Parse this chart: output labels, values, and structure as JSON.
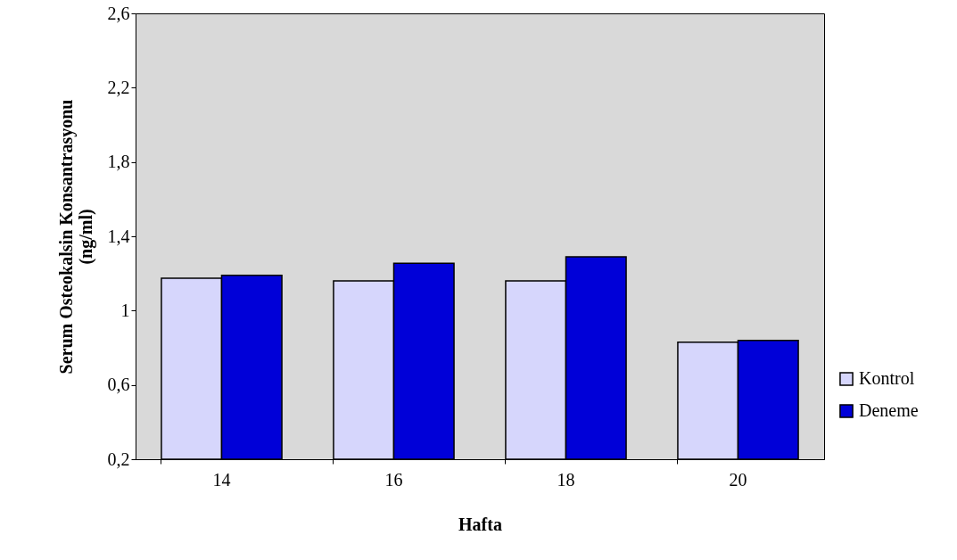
{
  "chart_data": {
    "type": "bar",
    "xlabel": "Hafta",
    "ylabel": "Serum Osteokalsin Konsantrasyonu (ng/ml)",
    "categories": [
      "14",
      "16",
      "18",
      "20"
    ],
    "series": [
      {
        "name": "Kontrol",
        "color": "#d6d6fc",
        "values": [
          1.175,
          1.16,
          1.16,
          0.83
        ]
      },
      {
        "name": "Deneme",
        "color": "#0000d8",
        "values": [
          1.19,
          1.255,
          1.29,
          0.84
        ]
      }
    ],
    "ylim": [
      0.2,
      2.6
    ],
    "yticks": [
      {
        "value": 0.2,
        "label": "0,2"
      },
      {
        "value": 0.6,
        "label": "0,6"
      },
      {
        "value": 1,
        "label": "1"
      },
      {
        "value": 1.4,
        "label": "1,4"
      },
      {
        "value": 1.8,
        "label": "1,8"
      },
      {
        "value": 2.2,
        "label": "2,2"
      },
      {
        "value": 2.6,
        "label": "2,6"
      }
    ],
    "grid": false,
    "legend": "bottom right"
  }
}
